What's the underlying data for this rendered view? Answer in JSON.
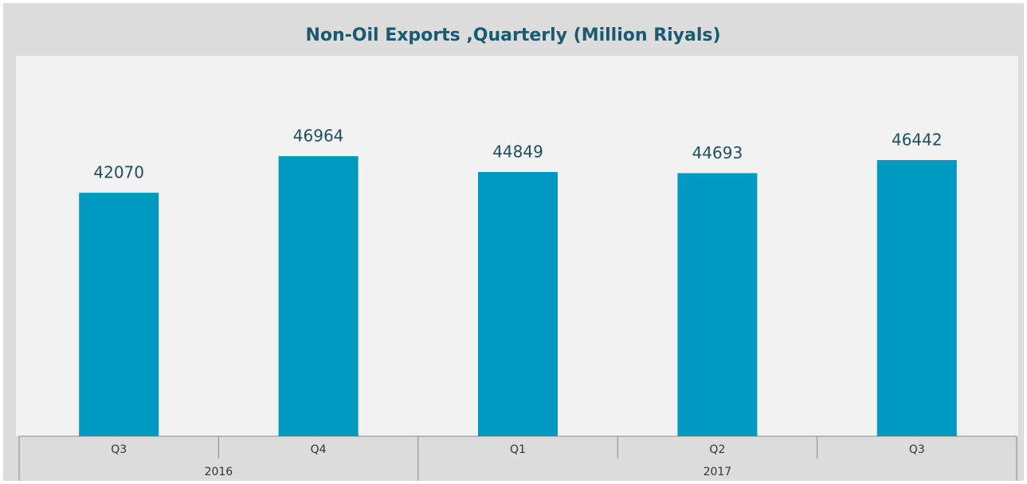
{
  "chart_data": {
    "type": "bar",
    "title": "Non-Oil Exports ,Quarterly (Million Riyals)",
    "categories": [
      "Q3",
      "Q4",
      "Q1",
      "Q2",
      "Q3"
    ],
    "groups": [
      {
        "label": "2016",
        "size": 2
      },
      {
        "label": "2017",
        "size": 3
      }
    ],
    "values": [
      42070,
      46964,
      44849,
      44693,
      46442
    ],
    "color": "#0099c2",
    "ylim": [
      9500,
      60400
    ]
  }
}
